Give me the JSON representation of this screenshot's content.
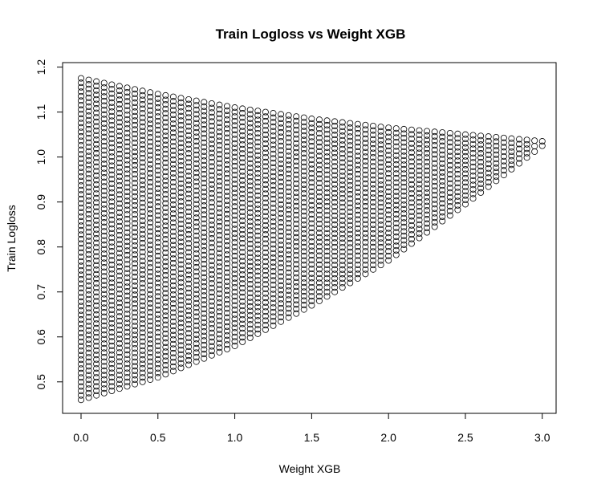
{
  "chart_data": {
    "type": "scatter",
    "title": "Train Logloss vs Weight XGB",
    "xlabel": "Weight XGB",
    "ylabel": "Train Logloss",
    "xlim": [
      -0.12,
      3.09
    ],
    "ylim": [
      0.43,
      1.21
    ],
    "x_ticks": [
      "0.0",
      "0.5",
      "1.0",
      "1.5",
      "2.0",
      "2.5",
      "3.0"
    ],
    "y_ticks": [
      "0.5",
      "0.6",
      "0.7",
      "0.8",
      "0.9",
      "1.0",
      "1.1",
      "1.2"
    ],
    "grid": false,
    "legend": "none",
    "marker": "open-circle",
    "series": [
      {
        "x_start": 0.0,
        "x_end": 3.0,
        "x_step": 0.05,
        "y_step": 0.01,
        "upper_envelope": [
          [
            0.0,
            1.175
          ],
          [
            0.5,
            1.14
          ],
          [
            1.0,
            1.11
          ],
          [
            1.5,
            1.085
          ],
          [
            2.0,
            1.065
          ],
          [
            2.5,
            1.05
          ],
          [
            3.0,
            1.035
          ]
        ],
        "lower_envelope": [
          [
            0.0,
            0.46
          ],
          [
            0.5,
            0.51
          ],
          [
            1.0,
            0.58
          ],
          [
            1.5,
            0.67
          ],
          [
            2.0,
            0.77
          ],
          [
            2.5,
            0.895
          ],
          [
            3.0,
            1.025
          ]
        ]
      }
    ]
  }
}
